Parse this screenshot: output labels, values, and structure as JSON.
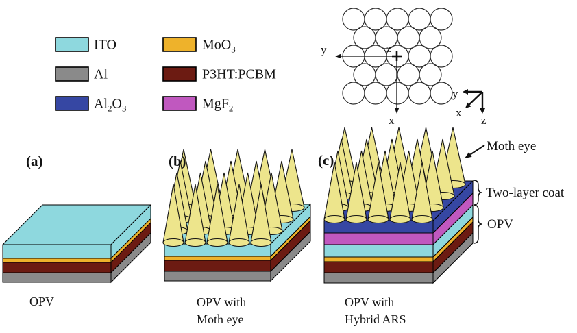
{
  "palette": {
    "ito": "#8ED8DE",
    "al": "#8A8A8A",
    "al2o3": "#3647A3",
    "moo3": "#EEB22B",
    "p3ht_pcbm": "#6C1B12",
    "mgf2": "#C058BF",
    "moth_eye": "#EDE58C",
    "outline": "#101010",
    "text": "#131313"
  },
  "legend": {
    "columns": [
      {
        "items": [
          {
            "id": "ito",
            "segments": [
              {
                "t": "ITO"
              }
            ]
          },
          {
            "id": "al",
            "segments": [
              {
                "t": "Al"
              }
            ]
          },
          {
            "id": "al2o3",
            "segments": [
              {
                "t": "Al"
              },
              {
                "t": "2",
                "sub": true
              },
              {
                "t": "O"
              },
              {
                "t": "3",
                "sub": true
              }
            ]
          }
        ]
      },
      {
        "items": [
          {
            "id": "moo3",
            "segments": [
              {
                "t": "MoO"
              },
              {
                "t": "3",
                "sub": true
              }
            ]
          },
          {
            "id": "p3ht_pcbm",
            "segments": [
              {
                "t": "P3HT:PCBM"
              }
            ]
          },
          {
            "id": "mgf2",
            "segments": [
              {
                "t": "MgF"
              },
              {
                "t": "2",
                "sub": true
              }
            ]
          }
        ]
      }
    ]
  },
  "top_view": {
    "plan_axes": {
      "y": "y",
      "x": "x",
      "z": "z"
    },
    "triad_axes": {
      "y": "y",
      "x": "x",
      "z": "z"
    }
  },
  "structures": [
    {
      "id": "a",
      "tag": "(a)",
      "caption_lines": [
        "OPV"
      ],
      "layers": [
        "ito",
        "moo3",
        "p3ht_pcbm",
        "al"
      ],
      "has_moth_eye": false
    },
    {
      "id": "b",
      "tag": "(b)",
      "caption_lines": [
        "OPV with",
        "Moth eye"
      ],
      "layers": [
        "ito",
        "moo3",
        "p3ht_pcbm",
        "al"
      ],
      "has_moth_eye": true
    },
    {
      "id": "c",
      "tag": "(c)",
      "caption_lines": [
        "OPV with",
        "Hybrid ARS"
      ],
      "layers": [
        "al2o3",
        "mgf2",
        "ito",
        "moo3",
        "p3ht_pcbm",
        "al"
      ],
      "has_moth_eye": true,
      "annotations": {
        "moth_eye": "Moth eye",
        "two_layer_coat": "Two-layer coat",
        "opv": "OPV"
      }
    }
  ]
}
